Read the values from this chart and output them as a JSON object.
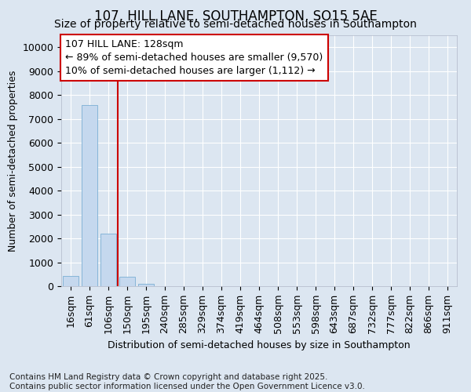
{
  "title": "107, HILL LANE, SOUTHAMPTON, SO15 5AE",
  "subtitle": "Size of property relative to semi-detached houses in Southampton",
  "xlabel": "Distribution of semi-detached houses by size in Southampton",
  "ylabel": "Number of semi-detached properties",
  "categories": [
    "16sqm",
    "61sqm",
    "106sqm",
    "150sqm",
    "195sqm",
    "240sqm",
    "285sqm",
    "329sqm",
    "374sqm",
    "419sqm",
    "464sqm",
    "508sqm",
    "553sqm",
    "598sqm",
    "643sqm",
    "687sqm",
    "732sqm",
    "777sqm",
    "822sqm",
    "866sqm",
    "911sqm"
  ],
  "values": [
    430,
    7570,
    2200,
    380,
    100,
    15,
    5,
    2,
    1,
    0,
    0,
    0,
    0,
    0,
    0,
    0,
    0,
    0,
    0,
    0,
    0
  ],
  "bar_color": "#c5d8ee",
  "bar_edge_color": "#7bafd4",
  "vline_x": 2.5,
  "vline_color": "#cc0000",
  "background_color": "#dce6f1",
  "annotation_text": "107 HILL LANE: 128sqm\n← 89% of semi-detached houses are smaller (9,570)\n10% of semi-detached houses are larger (1,112) →",
  "annotation_box_facecolor": "#ffffff",
  "annotation_box_edgecolor": "#cc0000",
  "ylim": [
    0,
    10500
  ],
  "yticks": [
    0,
    1000,
    2000,
    3000,
    4000,
    5000,
    6000,
    7000,
    8000,
    9000,
    10000
  ],
  "footer": "Contains HM Land Registry data © Crown copyright and database right 2025.\nContains public sector information licensed under the Open Government Licence v3.0.",
  "grid_color": "#ffffff",
  "title_fontsize": 12,
  "subtitle_fontsize": 10,
  "axis_label_fontsize": 9,
  "tick_fontsize": 9,
  "annotation_fontsize": 9,
  "footer_fontsize": 7.5
}
